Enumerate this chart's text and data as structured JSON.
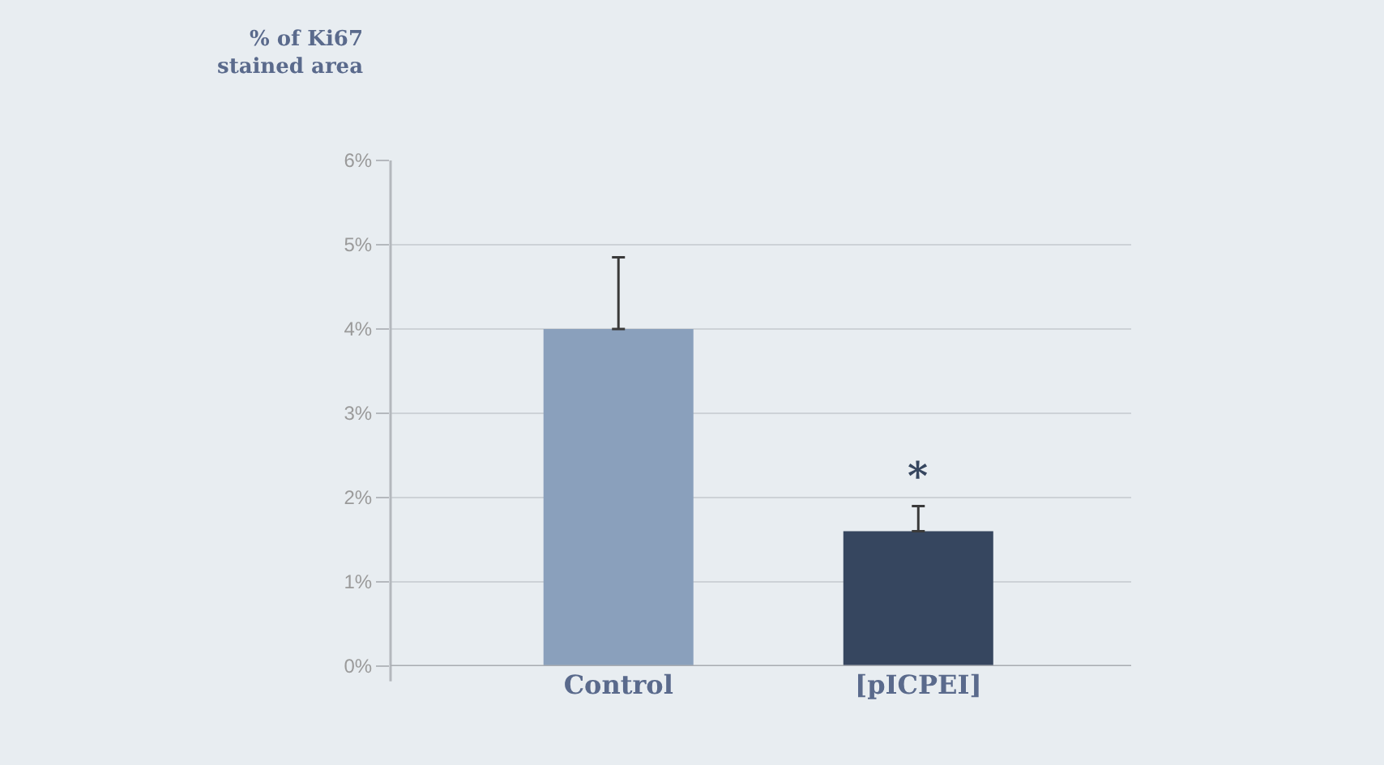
{
  "chart_data": {
    "type": "bar",
    "ylabel": "% of Ki67\nstained area",
    "categories": [
      "Control",
      "[pICPEI]"
    ],
    "values": [
      4.0,
      1.6
    ],
    "colors": [
      "#8aa0bc",
      "#36465f"
    ],
    "errors": [
      [
        4.0,
        4.85
      ],
      [
        1.6,
        1.9
      ]
    ],
    "ylim": [
      0,
      6
    ],
    "yticks": [
      {
        "value": 0,
        "label": "0%"
      },
      {
        "value": 1,
        "label": "1%"
      },
      {
        "value": 2,
        "label": "2%"
      },
      {
        "value": 3,
        "label": "3%"
      },
      {
        "value": 4,
        "label": "4%"
      },
      {
        "value": 5,
        "label": "5%"
      },
      {
        "value": 6,
        "label": "6%"
      }
    ],
    "grid": "y",
    "annotations": [
      {
        "text": "*",
        "x": "[pICPEI]",
        "y": 1.9
      }
    ]
  }
}
